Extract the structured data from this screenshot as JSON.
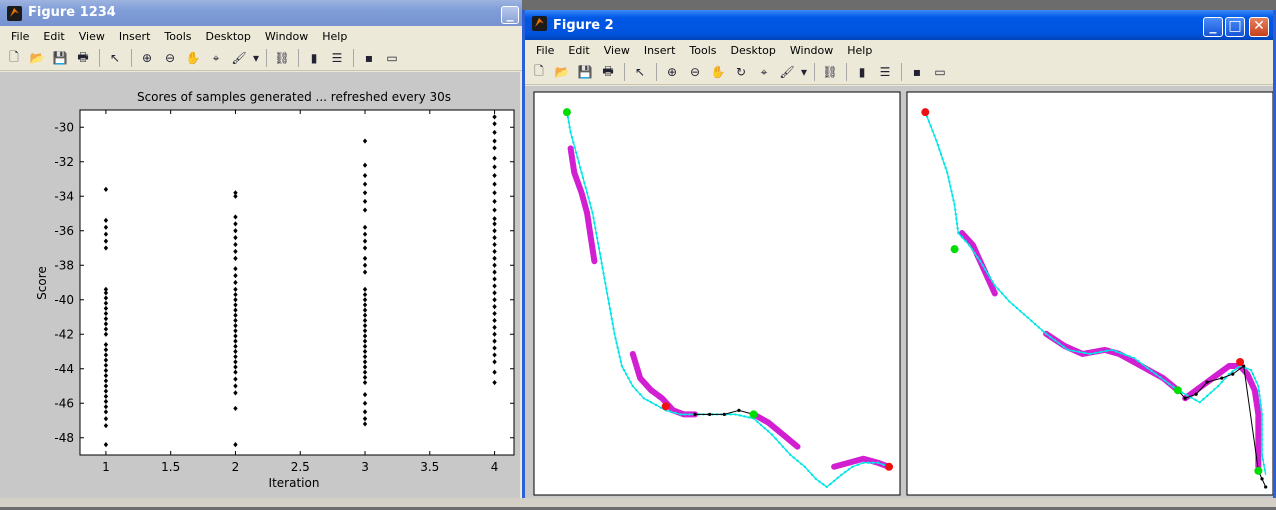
{
  "fig1": {
    "title": "Figure 1234",
    "menu": [
      "File",
      "Edit",
      "View",
      "Insert",
      "Tools",
      "Desktop",
      "Window",
      "Help"
    ],
    "toolbar_icons": [
      "new-file-icon",
      "open-folder-icon",
      "save-icon",
      "print-icon",
      "pointer-icon",
      "zoom-in-icon",
      "zoom-out-icon",
      "pan-hand-icon",
      "data-cursor-icon",
      "brush-icon",
      "link-icon",
      "colorbar-icon",
      "legend-icon",
      "hide-tools-icon",
      "dock-icon"
    ],
    "chart_data": {
      "type": "scatter",
      "title": "Scores of samples generated ... refreshed every 30s",
      "xlabel": "Iteration",
      "ylabel": "Score",
      "xlim": [
        0.8,
        4.15
      ],
      "ylim": [
        -49,
        -29
      ],
      "xticks": [
        "1",
        "1.5",
        "2",
        "2.5",
        "3",
        "3.5",
        "4"
      ],
      "yticks": [
        "-30",
        "-32",
        "-34",
        "-36",
        "-38",
        "-40",
        "-42",
        "-44",
        "-46",
        "-48"
      ],
      "marker_color": "#000000",
      "series": [
        {
          "x": 1,
          "y": [
            -33.6,
            -35.4,
            -35.8,
            -36.2,
            -36.6,
            -37.0,
            -39.4,
            -39.6,
            -39.9,
            -40.2,
            -40.5,
            -40.8,
            -41.1,
            -41.4,
            -41.7,
            -42.0,
            -42.6,
            -42.9,
            -43.2,
            -43.5,
            -43.8,
            -44.1,
            -44.4,
            -44.7,
            -45.0,
            -45.3,
            -45.6,
            -45.9,
            -46.2,
            -46.5,
            -46.9,
            -47.3,
            -48.4
          ]
        },
        {
          "x": 2,
          "y": [
            -33.8,
            -34.0,
            -35.2,
            -35.6,
            -36.0,
            -36.4,
            -36.8,
            -37.2,
            -37.6,
            -38.2,
            -38.6,
            -39.0,
            -39.4,
            -39.7,
            -40.0,
            -40.3,
            -40.6,
            -40.9,
            -41.2,
            -41.5,
            -41.8,
            -42.1,
            -42.4,
            -42.7,
            -43.0,
            -43.3,
            -43.6,
            -43.9,
            -44.2,
            -44.6,
            -45.0,
            -45.4,
            -46.3,
            -48.4
          ]
        },
        {
          "x": 3,
          "y": [
            -30.8,
            -32.2,
            -32.8,
            -33.3,
            -33.8,
            -34.3,
            -34.8,
            -35.8,
            -36.2,
            -36.6,
            -37.0,
            -37.6,
            -38.0,
            -38.4,
            -39.4,
            -39.7,
            -40.0,
            -40.3,
            -40.6,
            -40.9,
            -41.2,
            -41.5,
            -41.8,
            -42.1,
            -42.4,
            -42.7,
            -43.0,
            -43.3,
            -43.6,
            -43.9,
            -44.2,
            -44.5,
            -44.8,
            -45.5,
            -46.0,
            -46.5,
            -46.9,
            -47.2
          ]
        },
        {
          "x": 4,
          "y": [
            -29.4,
            -29.8,
            -30.3,
            -30.8,
            -31.2,
            -31.8,
            -32.3,
            -32.8,
            -33.3,
            -33.8,
            -34.3,
            -34.8,
            -35.3,
            -35.6,
            -36.0,
            -36.4,
            -36.8,
            -37.2,
            -37.6,
            -38.0,
            -38.4,
            -38.8,
            -39.2,
            -39.6,
            -40.0,
            -40.4,
            -40.8,
            -41.2,
            -41.6,
            -42.0,
            -42.4,
            -42.8,
            -43.2,
            -43.6,
            -44.2,
            -44.8
          ]
        }
      ]
    }
  },
  "fig2": {
    "title": "Figure 2",
    "menu": [
      "File",
      "Edit",
      "View",
      "Insert",
      "Tools",
      "Desktop",
      "Window",
      "Help"
    ],
    "toolbar_icons": [
      "new-file-icon",
      "open-folder-icon",
      "save-icon",
      "print-icon",
      "pointer-icon",
      "zoom-in-icon",
      "zoom-out-icon",
      "pan-hand-icon",
      "rotate-3d-icon",
      "data-cursor-icon",
      "brush-icon",
      "link-icon",
      "colorbar-icon",
      "legend-icon",
      "hide-tools-icon",
      "dock-icon"
    ],
    "colors": {
      "path": "#00e5e5",
      "segment": "#d21fd2",
      "black": "#000000",
      "start": "#00dd00",
      "end": "#ee1111"
    },
    "left_panel": {
      "path": [
        [
          0.09,
          0.05
        ],
        [
          0.1,
          0.1
        ],
        [
          0.13,
          0.2
        ],
        [
          0.16,
          0.3
        ],
        [
          0.18,
          0.4
        ],
        [
          0.2,
          0.5
        ],
        [
          0.22,
          0.6
        ],
        [
          0.24,
          0.68
        ],
        [
          0.27,
          0.73
        ],
        [
          0.3,
          0.76
        ],
        [
          0.32,
          0.77
        ],
        [
          0.36,
          0.79
        ],
        [
          0.4,
          0.8
        ],
        [
          0.45,
          0.8
        ],
        [
          0.5,
          0.8
        ],
        [
          0.55,
          0.8
        ],
        [
          0.6,
          0.81
        ],
        [
          0.65,
          0.85
        ],
        [
          0.7,
          0.9
        ],
        [
          0.74,
          0.93
        ],
        [
          0.77,
          0.96
        ],
        [
          0.8,
          0.98
        ],
        [
          0.84,
          0.95
        ],
        [
          0.87,
          0.93
        ],
        [
          0.9,
          0.92
        ],
        [
          0.94,
          0.92
        ],
        [
          0.97,
          0.93
        ]
      ],
      "magenta_segments": [
        [
          [
            0.1,
            0.14
          ],
          [
            0.11,
            0.2
          ],
          [
            0.13,
            0.25
          ],
          [
            0.145,
            0.3
          ],
          [
            0.155,
            0.36
          ],
          [
            0.165,
            0.42
          ]
        ],
        [
          [
            0.27,
            0.65
          ],
          [
            0.29,
            0.71
          ],
          [
            0.32,
            0.74
          ],
          [
            0.35,
            0.76
          ],
          [
            0.38,
            0.79
          ],
          [
            0.41,
            0.8
          ],
          [
            0.44,
            0.8
          ]
        ],
        [
          [
            0.6,
            0.8
          ],
          [
            0.64,
            0.82
          ],
          [
            0.68,
            0.85
          ],
          [
            0.72,
            0.88
          ]
        ],
        [
          [
            0.82,
            0.93
          ],
          [
            0.86,
            0.92
          ],
          [
            0.9,
            0.91
          ],
          [
            0.94,
            0.92
          ],
          [
            0.97,
            0.93
          ]
        ]
      ],
      "black_segment": [
        [
          0.44,
          0.8
        ],
        [
          0.48,
          0.8
        ],
        [
          0.52,
          0.8
        ],
        [
          0.56,
          0.79
        ],
        [
          0.6,
          0.8
        ]
      ],
      "markers": {
        "green": [
          [
            0.09,
            0.05
          ],
          [
            0.6,
            0.8
          ]
        ],
        "red": [
          [
            0.36,
            0.78
          ],
          [
            0.97,
            0.93
          ]
        ]
      }
    },
    "right_panel": {
      "path": [
        [
          0.05,
          0.05
        ],
        [
          0.08,
          0.12
        ],
        [
          0.11,
          0.2
        ],
        [
          0.13,
          0.28
        ],
        [
          0.14,
          0.35
        ],
        [
          0.17,
          0.38
        ],
        [
          0.2,
          0.42
        ],
        [
          0.24,
          0.48
        ],
        [
          0.28,
          0.52
        ],
        [
          0.33,
          0.56
        ],
        [
          0.38,
          0.6
        ],
        [
          0.44,
          0.64
        ],
        [
          0.5,
          0.65
        ],
        [
          0.56,
          0.64
        ],
        [
          0.62,
          0.66
        ],
        [
          0.68,
          0.7
        ],
        [
          0.74,
          0.74
        ],
        [
          0.8,
          0.77
        ],
        [
          0.85,
          0.73
        ],
        [
          0.88,
          0.7
        ],
        [
          0.91,
          0.68
        ],
        [
          0.94,
          0.69
        ],
        [
          0.96,
          0.73
        ],
        [
          0.97,
          0.8
        ],
        [
          0.97,
          0.9
        ],
        [
          0.98,
          0.95
        ]
      ],
      "magenta_segments": [
        [
          [
            0.15,
            0.35
          ],
          [
            0.18,
            0.38
          ],
          [
            0.2,
            0.42
          ],
          [
            0.22,
            0.46
          ],
          [
            0.24,
            0.5
          ]
        ],
        [
          [
            0.38,
            0.6
          ],
          [
            0.43,
            0.63
          ],
          [
            0.48,
            0.65
          ],
          [
            0.54,
            0.64
          ],
          [
            0.58,
            0.65
          ],
          [
            0.62,
            0.67
          ],
          [
            0.66,
            0.69
          ],
          [
            0.7,
            0.71
          ],
          [
            0.74,
            0.74
          ]
        ],
        [
          [
            0.76,
            0.76
          ],
          [
            0.79,
            0.74
          ],
          [
            0.82,
            0.72
          ],
          [
            0.85,
            0.7
          ],
          [
            0.88,
            0.68
          ],
          [
            0.91,
            0.68
          ],
          [
            0.93,
            0.7
          ],
          [
            0.95,
            0.74
          ],
          [
            0.96,
            0.8
          ],
          [
            0.96,
            0.88
          ],
          [
            0.96,
            0.93
          ]
        ]
      ],
      "black_segment": [
        [
          0.74,
          0.74
        ],
        [
          0.76,
          0.76
        ],
        [
          0.79,
          0.75
        ],
        [
          0.82,
          0.72
        ],
        [
          0.86,
          0.71
        ],
        [
          0.89,
          0.7
        ],
        [
          0.92,
          0.68
        ],
        [
          0.96,
          0.94
        ],
        [
          0.97,
          0.96
        ],
        [
          0.98,
          0.98
        ]
      ],
      "markers": {
        "green": [
          [
            0.13,
            0.39
          ],
          [
            0.74,
            0.74
          ],
          [
            0.96,
            0.94
          ]
        ],
        "red": [
          [
            0.05,
            0.05
          ],
          [
            0.91,
            0.67
          ]
        ]
      }
    }
  }
}
